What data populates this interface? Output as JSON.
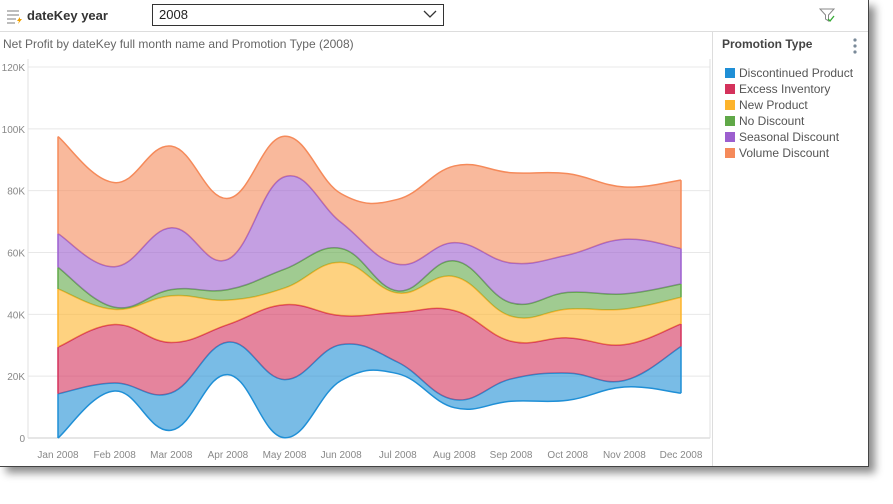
{
  "slicer": {
    "label": "dateKey year",
    "selected": "2008"
  },
  "chart_title": "Net Profit by dateKey full month name and Promotion Type (2008)",
  "legend": {
    "title": "Promotion Type"
  },
  "chart_data": {
    "type": "area",
    "stacking": "streamgraph",
    "title": "Net Profit by dateKey full month name and Promotion Type (2008)",
    "xlabel": "",
    "ylabel": "",
    "ylim": [
      0,
      120000
    ],
    "yticks": [
      "0",
      "20K",
      "40K",
      "60K",
      "80K",
      "100K",
      "120K"
    ],
    "ytick_values": [
      0,
      20000,
      40000,
      60000,
      80000,
      100000,
      120000
    ],
    "grid": true,
    "legend_position": "right",
    "categories": [
      "Jan 2008",
      "Feb 2008",
      "Mar 2008",
      "Apr 2008",
      "May 2008",
      "Jun 2008",
      "Jul 2008",
      "Aug 2008",
      "Sep 2008",
      "Oct 2008",
      "Nov 2008",
      "Dec 2008"
    ],
    "baseline": [
      0,
      15200,
      2500,
      20500,
      100,
      18600,
      20800,
      9800,
      11900,
      12200,
      16500,
      14500
    ],
    "series": [
      {
        "name": "Discontinued Product",
        "color": "#1f8fd6",
        "values": [
          14300,
          2600,
          12100,
          10500,
          18800,
          11600,
          3700,
          2600,
          7200,
          8800,
          2100,
          15100
        ]
      },
      {
        "name": "Excess Inventory",
        "color": "#d4325c",
        "values": [
          15100,
          18900,
          16300,
          5700,
          24200,
          9400,
          16100,
          28800,
          12200,
          11400,
          11600,
          7300
        ]
      },
      {
        "name": "New Product",
        "color": "#fdb42c",
        "values": [
          18800,
          4900,
          15100,
          7900,
          5400,
          17200,
          6300,
          11000,
          8100,
          9300,
          11500,
          8600
        ]
      },
      {
        "name": "No Discount",
        "color": "#60a848",
        "values": [
          7000,
          700,
          2000,
          3400,
          6100,
          4500,
          700,
          5100,
          4300,
          5400,
          4900,
          4300
        ]
      },
      {
        "name": "Seasonal Discount",
        "color": "#9c5fcf",
        "values": [
          10900,
          13100,
          20000,
          9800,
          29900,
          8400,
          8600,
          5900,
          12900,
          12100,
          17700,
          11500
        ]
      },
      {
        "name": "Volume Discount",
        "color": "#f58a5a",
        "values": [
          31400,
          27200,
          26400,
          19700,
          13100,
          9300,
          21000,
          24800,
          29200,
          26300,
          16900,
          22100
        ]
      }
    ]
  }
}
